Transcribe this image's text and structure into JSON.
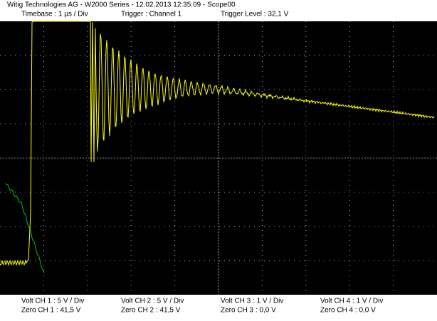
{
  "header": {
    "title": "Witig Technologies AG - W2000 Series  -  12.02.2013 12:35:09 - Scope00",
    "timebase": "Timebase : 1 µs / Div",
    "trigger": "Trigger : Channel 1",
    "trigger_level": "Trigger Level : 32,1 V"
  },
  "footer": {
    "channels": [
      {
        "volt": "Volt CH 1 : 5 V / Div",
        "zero": "Zero CH 1 : 41,5 V"
      },
      {
        "volt": "Volt CH 2 : 5 V / Div",
        "zero": "Zero CH 2 : 41,5 V"
      },
      {
        "volt": "Volt CH 3 : 1 V / Div",
        "zero": "Zero CH 3 : 0,0 V"
      },
      {
        "volt": "Volt CH 4 : 1 V / Div",
        "zero": "Zero CH 4 : 0,0 V"
      }
    ]
  }
}
